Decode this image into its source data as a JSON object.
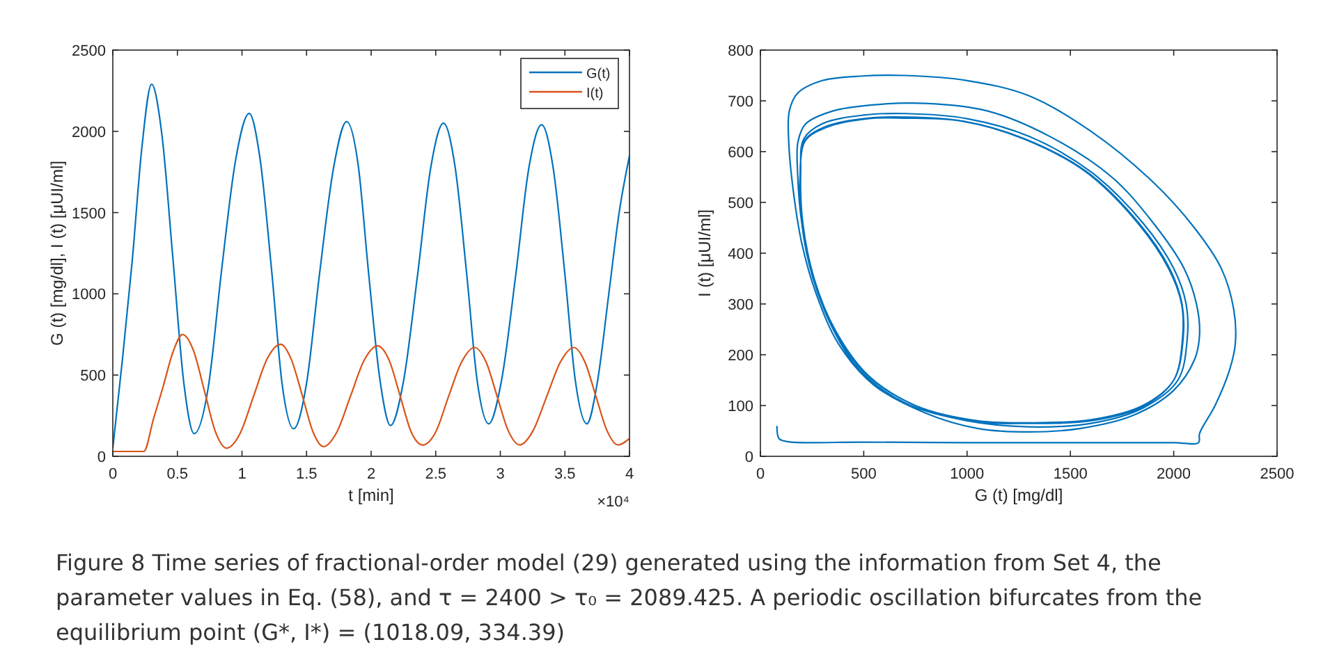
{
  "chart_data": [
    {
      "type": "line",
      "xlabel": "t [min]",
      "ylabel": "G (t) [mg/dl], I (t) [μUI/ml]",
      "xlim": [
        0,
        4
      ],
      "ylim": [
        0,
        2500
      ],
      "xticks": [
        0,
        0.5,
        1,
        1.5,
        2,
        2.5,
        3,
        3.5,
        4
      ],
      "yticks": [
        0,
        500,
        1000,
        1500,
        2000,
        2500
      ],
      "legend": "top right",
      "annotations": [
        "×10⁴"
      ],
      "series": [
        {
          "name": "G(t)",
          "color": "#0072bd",
          "x": [
            0,
            0.075,
            0.15,
            0.225,
            0.3,
            0.38,
            0.465,
            0.55,
            0.63,
            0.74,
            0.84,
            0.95,
            1.056,
            1.14,
            1.23,
            1.31,
            1.4,
            1.5,
            1.6,
            1.71,
            1.81,
            1.9,
            1.98,
            2.07,
            2.15,
            2.25,
            2.36,
            2.46,
            2.56,
            2.65,
            2.74,
            2.82,
            2.91,
            3.01,
            3.12,
            3.22,
            3.32,
            3.41,
            3.5,
            3.58,
            3.67,
            3.75,
            3.84,
            3.92,
            4
          ],
          "values": [
            50,
            600,
            1200,
            1900,
            2290,
            1980,
            1220,
            450,
            140,
            430,
            1130,
            1820,
            2110,
            1830,
            1140,
            450,
            170,
            450,
            1120,
            1780,
            2060,
            1790,
            1130,
            460,
            190,
            460,
            1120,
            1770,
            2050,
            1780,
            1120,
            470,
            200,
            470,
            1120,
            1770,
            2040,
            1770,
            1120,
            470,
            200,
            450,
            1000,
            1500,
            1850
          ]
        },
        {
          "name": "I(t)",
          "color": "#d95319",
          "x": [
            0,
            0.24,
            0.315,
            0.39,
            0.465,
            0.54,
            0.625,
            0.71,
            0.795,
            0.88,
            0.985,
            1.09,
            1.195,
            1.3,
            1.38,
            1.465,
            1.55,
            1.63,
            1.735,
            1.84,
            1.945,
            2.05,
            2.14,
            2.225,
            2.31,
            2.4,
            2.5,
            2.6,
            2.7,
            2.8,
            2.89,
            2.975,
            3.06,
            3.15,
            3.255,
            3.36,
            3.465,
            3.57,
            3.655,
            3.74,
            3.825,
            3.91,
            4
          ],
          "values": [
            30,
            30,
            230,
            430,
            640,
            750,
            650,
            400,
            150,
            50,
            140,
            370,
            600,
            690,
            600,
            380,
            150,
            60,
            150,
            370,
            590,
            680,
            590,
            370,
            150,
            70,
            150,
            370,
            580,
            670,
            580,
            370,
            160,
            70,
            160,
            370,
            580,
            670,
            580,
            370,
            160,
            70,
            110
          ]
        }
      ]
    },
    {
      "type": "line",
      "xlabel": "G (t) [mg/dl]",
      "ylabel": "I (t) [μUI/ml]",
      "xlim": [
        0,
        2500
      ],
      "ylim": [
        0,
        800
      ],
      "xticks": [
        0,
        500,
        1000,
        1500,
        2000,
        2500
      ],
      "yticks": [
        0,
        100,
        200,
        300,
        400,
        500,
        600,
        700,
        800
      ],
      "series": [
        {
          "color": "#0072bd",
          "x": [
            80,
            90,
            130,
            500,
            1000,
            1500,
            2000,
            2120,
            2125,
            2200,
            2270,
            2298,
            2290,
            2230,
            2100,
            1900,
            1600,
            1300,
            1000,
            700,
            496,
            300,
            180,
            140,
            137,
            160,
            200,
            270,
            380,
            550,
            800,
            1050,
            1300,
            1550,
            1800,
            2000,
            2100,
            2125,
            2110,
            2050,
            1900,
            1700,
            1400,
            1100,
            800,
            541,
            350,
            220,
            182,
            180,
            200,
            250,
            340,
            480,
            700,
            1000,
            1300,
            1600,
            1850,
            2020,
            2065,
            2060,
            2000,
            1850,
            1600,
            1300,
            1000,
            700,
            500,
            300,
            210,
            195,
            205,
            260,
            360,
            520,
            750,
            1050,
            1300,
            1600,
            1850,
            2000,
            2045,
            2040,
            1980,
            1830,
            1580,
            1280,
            980,
            700,
            520,
            320,
            215,
            193,
            200,
            255,
            355,
            515,
            750,
            1050,
            1300,
            1600,
            1850,
            2000,
            2042,
            2038,
            1975,
            1825,
            1575,
            1275,
            975,
            700,
            520,
            320,
            215,
            193
          ],
          "values": [
            60,
            35,
            29,
            28,
            27,
            27,
            27,
            27,
            45,
            100,
            170,
            222,
            290,
            370,
            450,
            540,
            640,
            710,
            740,
            750,
            749,
            740,
            715,
            680,
            620,
            520,
            420,
            320,
            220,
            140,
            85,
            55,
            48,
            55,
            80,
            130,
            190,
            240,
            300,
            370,
            460,
            550,
            630,
            680,
            695,
            692,
            680,
            655,
            620,
            560,
            460,
            360,
            260,
            170,
            105,
            70,
            58,
            65,
            95,
            150,
            230,
            300,
            370,
            460,
            560,
            630,
            665,
            675,
            672,
            655,
            625,
            560,
            460,
            350,
            250,
            160,
            100,
            70,
            66,
            72,
            100,
            150,
            230,
            300,
            370,
            460,
            560,
            625,
            660,
            668,
            666,
            650,
            622,
            560,
            460,
            350,
            250,
            160,
            100,
            68,
            65,
            70,
            98,
            150,
            230,
            300,
            370,
            460,
            560,
            625,
            660,
            666,
            665,
            648,
            620,
            560
          ]
        }
      ]
    },
    {
      "type": "other",
      "annotations": [
        "Figure 8  Time series of fractional-order model (29) generated using the information from Set 4, the parameter values in Eq. (58), and τ = 2400 > τ₀ = 2089.425. A periodic oscillation bifurcates from the equilibrium point (G*, I*) = (1018.09, 334.39)"
      ]
    }
  ]
}
